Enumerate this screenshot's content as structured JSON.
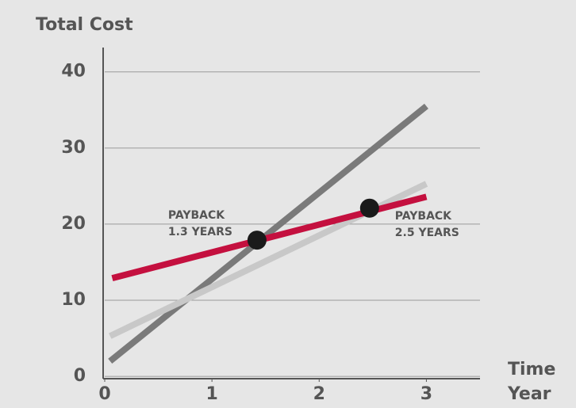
{
  "chart_data": {
    "type": "line",
    "ylabel": "Total Cost",
    "xlabel": [
      "Time",
      "Year"
    ],
    "xlim": [
      0,
      3.5
    ],
    "ylim": [
      -0.3,
      43.2
    ],
    "xticks": [
      0,
      1,
      2,
      3
    ],
    "yticks": [
      0,
      10,
      20,
      30,
      40
    ],
    "grid": true,
    "series": [
      {
        "color": "#7a7a7a",
        "x": [
          0.05,
          3
        ],
        "values": [
          2,
          35.5
        ]
      },
      {
        "color": "#c8c8c8",
        "x": [
          0.05,
          3
        ],
        "values": [
          5.3,
          25.3
        ]
      },
      {
        "color": "#c4103f",
        "x": [
          0.07,
          3
        ],
        "values": [
          12.9,
          23.6
        ]
      }
    ],
    "annotations": [
      {
        "lines": [
          "PAYBACK",
          "1.3 YEARS"
        ],
        "x": 1.42,
        "y": 17.9
      },
      {
        "lines": [
          "PAYBACK",
          "2.5 YEARS"
        ],
        "x": 2.47,
        "y": 22.1
      }
    ],
    "point_color": "#1a1a1a"
  }
}
